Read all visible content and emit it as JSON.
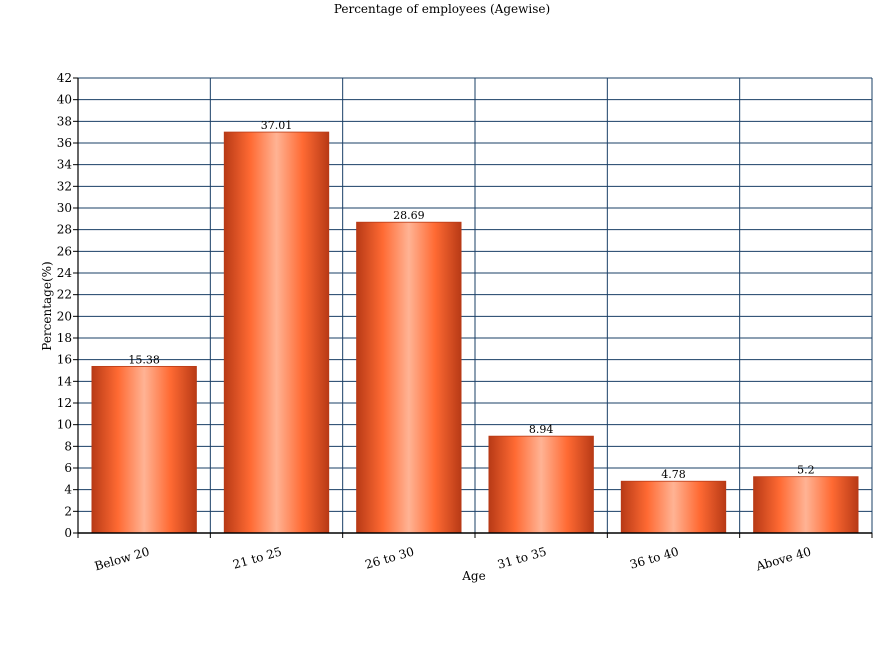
{
  "chart_data": {
    "type": "bar",
    "title": "Percentage of employees (Agewise)",
    "xlabel": "Age",
    "ylabel": "Percentage(%)",
    "categories": [
      "Below 20",
      "21 to 25",
      "26 to 30",
      "31 to 35",
      "36 to 40",
      "Above 40"
    ],
    "values": [
      15.38,
      37.01,
      28.69,
      8.94,
      4.78,
      5.2
    ],
    "data_labels": [
      "15.38",
      "37.01",
      "28.69",
      "8.94",
      "4.78",
      "5.2"
    ],
    "ylim": [
      0,
      42
    ],
    "ytick_step": 2,
    "grid": true,
    "legend": "none",
    "colors": {
      "bar_edge": "#b83a16",
      "bar_mid": "#ff6a33",
      "bar_highlight": "#ffb394",
      "grid": "#1a3f66",
      "axis": "#000000"
    }
  }
}
